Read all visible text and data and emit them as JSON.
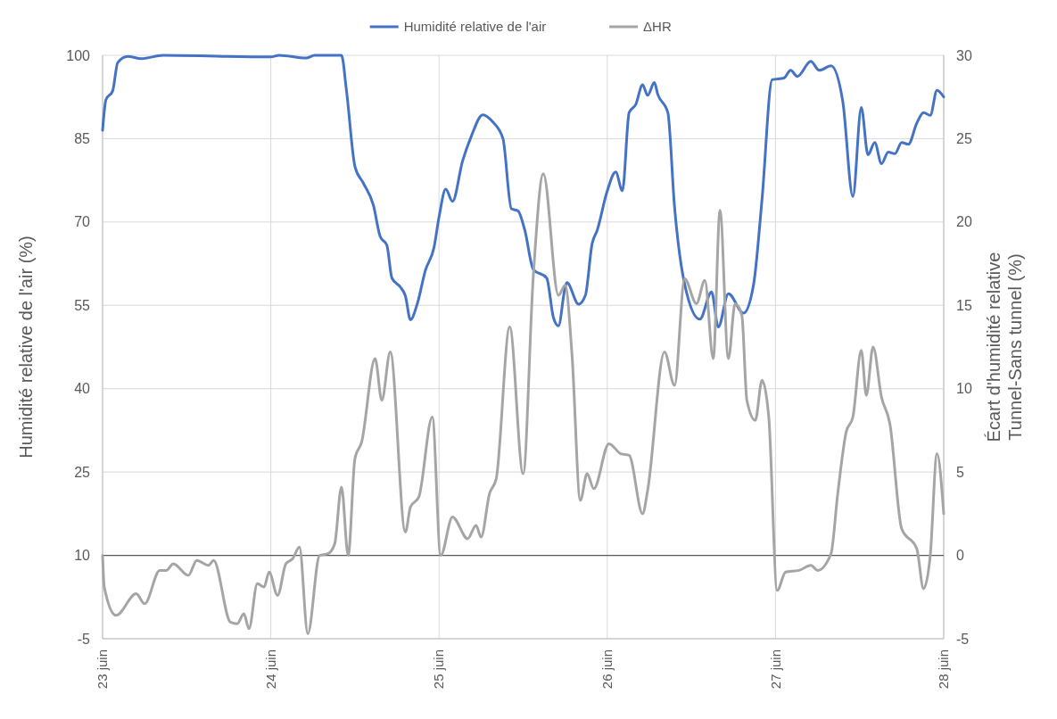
{
  "chart_data": {
    "type": "line",
    "xlabel": null,
    "ylabel": "Humidité relative de l'air (%)",
    "y2label": "Écart d'humidité relative\nTunnel-Sans tunnel (%)",
    "xlim": [
      23,
      28
    ],
    "xticks": [
      {
        "value": 23,
        "label": "23 juin"
      },
      {
        "value": 24,
        "label": "24 juin"
      },
      {
        "value": 25,
        "label": "25 juin"
      },
      {
        "value": 26,
        "label": "26 juin"
      },
      {
        "value": 27,
        "label": "27 juin"
      },
      {
        "value": 28,
        "label": "28 juin"
      }
    ],
    "ylim": [
      -5,
      100
    ],
    "yticks": [
      -5,
      10,
      25,
      40,
      55,
      70,
      85,
      100
    ],
    "y2lim": [
      -5,
      30
    ],
    "y2ticks": [
      -5,
      0,
      5,
      10,
      15,
      20,
      25,
      30
    ],
    "grid": true,
    "legend": "top",
    "marker": "none",
    "line_style": "solid",
    "ref_lines": [
      {
        "axis": "y2",
        "value": 0,
        "label": null,
        "color": "#595959"
      }
    ],
    "series": [
      {
        "name": "Humidité relative de l'air",
        "color": "#4472c4",
        "x": [
          23.0,
          23.02,
          23.06,
          23.09,
          23.15,
          23.23,
          23.36,
          24.0,
          24.05,
          24.21,
          24.26,
          24.42,
          24.45,
          24.5,
          24.55,
          24.61,
          24.65,
          24.69,
          24.72,
          24.77,
          24.8,
          24.83,
          24.87,
          24.92,
          24.97,
          25.0,
          25.04,
          25.08,
          25.14,
          25.19,
          25.26,
          25.32,
          25.38,
          25.43,
          25.47,
          25.51,
          25.56,
          25.64,
          25.68,
          25.71,
          25.75,
          25.76,
          25.83,
          25.87,
          25.91,
          25.94,
          26.0,
          26.05,
          26.09,
          26.13,
          26.17,
          26.21,
          26.24,
          26.28,
          26.3,
          26.36,
          26.4,
          26.46,
          26.55,
          26.62,
          26.66,
          26.72,
          26.81,
          26.87,
          26.92,
          26.98,
          27.05,
          27.09,
          27.13,
          27.21,
          27.26,
          27.33,
          27.4,
          27.46,
          27.51,
          27.55,
          27.59,
          27.63,
          27.67,
          27.71,
          27.75,
          27.79,
          27.84,
          27.88,
          27.92,
          27.96,
          28.0
        ],
        "values": [
          86.5,
          92,
          93.6,
          98.7,
          99.8,
          99.4,
          100,
          99.7,
          100,
          99.5,
          100,
          100,
          93.6,
          80,
          77,
          73,
          67.4,
          65.8,
          59.9,
          58.3,
          56.7,
          52.4,
          55.2,
          61.4,
          65.4,
          70.9,
          75.9,
          73.7,
          81,
          85.3,
          89.3,
          88,
          85,
          72.4,
          72,
          68.5,
          61.5,
          59.9,
          52.8,
          51.3,
          58.3,
          59.1,
          55.2,
          56.8,
          66.1,
          68.5,
          75.6,
          79,
          75.6,
          89.7,
          91.2,
          94.7,
          92.8,
          95.1,
          93,
          89.7,
          72.7,
          58.8,
          52.5,
          57.4,
          51.1,
          57.1,
          53.6,
          58.8,
          74.1,
          95.6,
          95.9,
          97.3,
          96.2,
          98.9,
          97.3,
          98.1,
          91.7,
          74.6,
          90.6,
          82.1,
          84.3,
          80.5,
          82.6,
          82.3,
          84.3,
          84,
          87.8,
          89.7,
          89.2,
          93.7,
          92.5
        ]
      },
      {
        "name": "ΔHR",
        "color": "#a5a5a5",
        "axis": "y2",
        "x": [
          23.0,
          23.01,
          23.08,
          23.2,
          23.25,
          23.34,
          23.38,
          23.42,
          23.51,
          23.56,
          23.63,
          23.66,
          23.76,
          23.8,
          23.84,
          23.87,
          23.92,
          23.96,
          23.99,
          24.04,
          24.09,
          24.13,
          24.17,
          24.22,
          24.29,
          24.34,
          24.38,
          24.42,
          24.46,
          24.5,
          24.54,
          24.62,
          24.66,
          24.71,
          24.8,
          24.83,
          24.88,
          24.96,
          25.01,
          25.08,
          25.17,
          25.22,
          25.25,
          25.3,
          25.34,
          25.42,
          25.5,
          25.56,
          25.62,
          25.71,
          25.75,
          25.79,
          25.84,
          25.88,
          25.92,
          26.01,
          26.08,
          26.13,
          26.21,
          26.24,
          26.34,
          26.4,
          26.46,
          26.53,
          26.58,
          26.63,
          26.67,
          26.72,
          26.76,
          26.8,
          26.83,
          26.88,
          26.92,
          26.96,
          27.01,
          27.06,
          27.14,
          27.21,
          27.25,
          27.33,
          27.37,
          27.42,
          27.46,
          27.51,
          27.54,
          27.58,
          27.63,
          27.68,
          27.75,
          27.84,
          27.88,
          27.92,
          27.96,
          28.0
        ],
        "values": [
          0,
          -1.9,
          -3.6,
          -2.3,
          -2.9,
          -0.9,
          -0.9,
          -0.5,
          -1.2,
          -0.3,
          -0.6,
          -0.3,
          -4.0,
          -4.1,
          -3.5,
          -4.4,
          -1.7,
          -1.9,
          -1.0,
          -2.4,
          -0.5,
          -0.2,
          0.5,
          -4.7,
          0,
          0.1,
          0.7,
          4.1,
          0,
          5.8,
          6.8,
          11.8,
          9.3,
          12.2,
          1.4,
          2.9,
          3.5,
          8.3,
          0,
          2.3,
          1.0,
          1.8,
          1.1,
          3.7,
          4.6,
          13.7,
          4.9,
          16.7,
          22.9,
          15.6,
          16.2,
          12.1,
          3.3,
          4.9,
          4.0,
          6.7,
          6.1,
          6.0,
          2.5,
          3.9,
          12.2,
          10.2,
          16.6,
          15.1,
          16.5,
          11.8,
          20.7,
          11.8,
          15.1,
          14.4,
          9.3,
          8.1,
          10.5,
          8.3,
          -2.1,
          -1.0,
          -0.9,
          -0.6,
          -0.9,
          0.1,
          3.7,
          7.4,
          8.3,
          12.3,
          9.6,
          12.5,
          9.5,
          7.9,
          1.6,
          0.4,
          -2.0,
          0,
          6.1,
          2.5
        ]
      }
    ]
  }
}
